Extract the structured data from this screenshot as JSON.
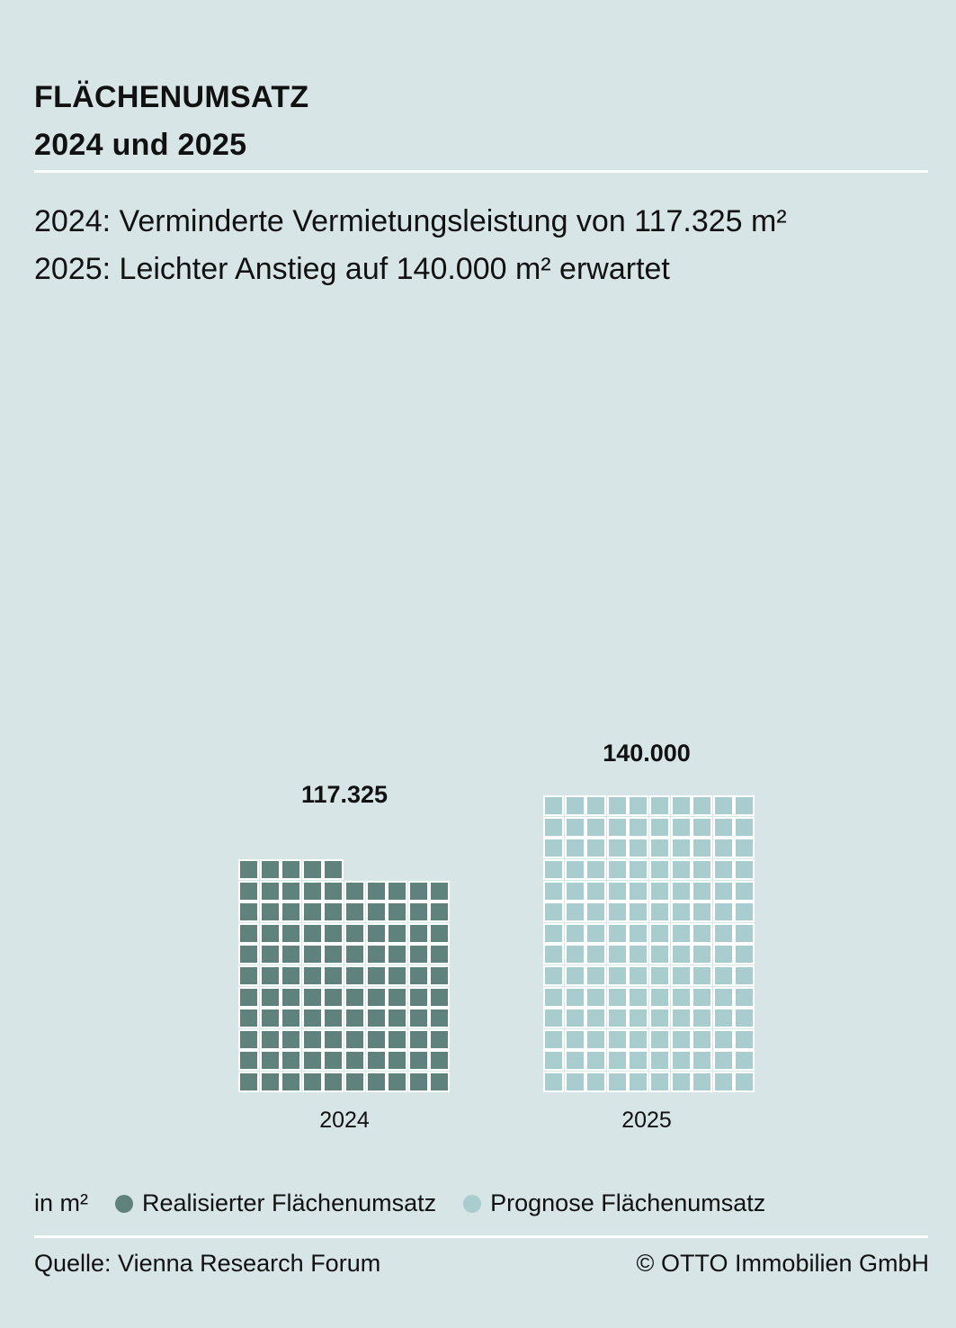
{
  "header": {
    "title_line1": "FLÄCHENUMSATZ",
    "title_line2": "2024 und 2025"
  },
  "subtitle": {
    "line1": "2024: Verminderte Vermietungsleistung von 117.325 m²",
    "line2": "2025: Leichter Anstieg auf 140.000 m² erwartet"
  },
  "chart_data": {
    "type": "bar",
    "categories": [
      "2024",
      "2025"
    ],
    "values": [
      117325,
      140000
    ],
    "value_labels": [
      "117.325",
      "140.000"
    ],
    "series": [
      {
        "name": "Realisierter Flächenumsatz",
        "values": [
          117325,
          null
        ],
        "color": "#5f827d"
      },
      {
        "name": "Prognose Flächenumsatz",
        "values": [
          null,
          140000
        ],
        "color": "#a9cccf"
      }
    ],
    "unit": "in m²",
    "grid": false,
    "legend_position": "bottom-left"
  },
  "legend": {
    "unit": "in m²",
    "realized": "Realisierter Flächenumsatz",
    "forecast": "Prognose Flächenumsatz"
  },
  "footer": {
    "source": "Quelle: Vienna Research Forum",
    "copyright": "© OTTO Immobilien GmbH"
  },
  "colors": {
    "background": "#d7e5e6",
    "realized": "#5f827d",
    "forecast": "#a9cccf",
    "rule": "#ffffff"
  }
}
